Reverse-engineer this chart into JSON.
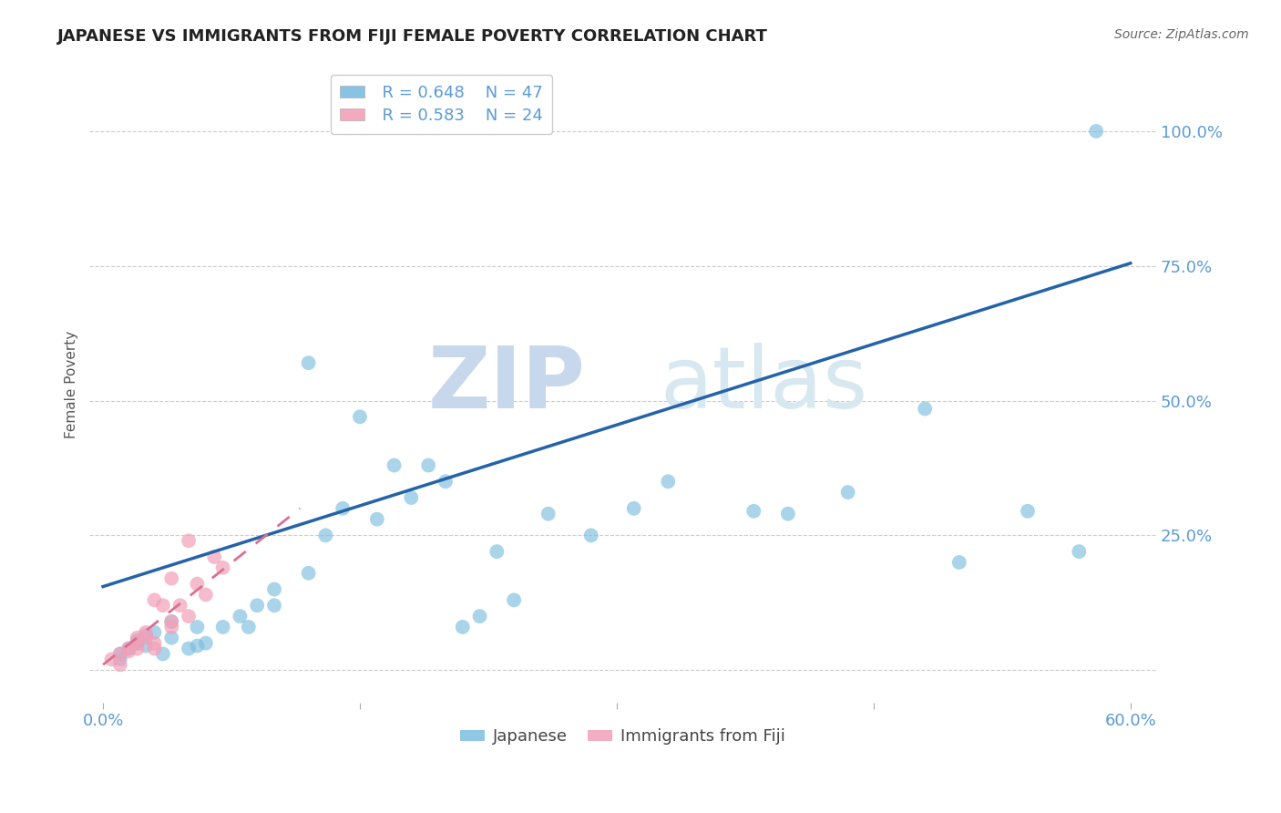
{
  "title": "JAPANESE VS IMMIGRANTS FROM FIJI FEMALE POVERTY CORRELATION CHART",
  "source": "Source: ZipAtlas.com",
  "ylabel": "Female Poverty",
  "ytick_vals": [
    0.0,
    0.25,
    0.5,
    0.75,
    1.0
  ],
  "ytick_labels_right": [
    "",
    "25.0%",
    "50.0%",
    "75.0%",
    "100.0%"
  ],
  "xlim": [
    -0.008,
    0.615
  ],
  "ylim": [
    -0.06,
    1.12
  ],
  "xtick_vals": [
    0.0,
    0.15,
    0.3,
    0.45,
    0.6
  ],
  "xtick_labels": [
    "0.0%",
    "",
    "",
    "",
    "60.0%"
  ],
  "legend_r1": "R = 0.648",
  "legend_n1": "N = 47",
  "legend_r2": "R = 0.583",
  "legend_n2": "N = 24",
  "legend_label1": "Japanese",
  "legend_label2": "Immigrants from Fiji",
  "blue_scatter_color": "#7BBDE0",
  "pink_scatter_color": "#F2A0B8",
  "blue_line_color": "#2563A8",
  "pink_line_color": "#D97090",
  "watermark_zip": "ZIP",
  "watermark_atlas": "atlas",
  "blue_line_x0": 0.0,
  "blue_line_y0": 0.155,
  "blue_line_x1": 0.6,
  "blue_line_y1": 0.755,
  "pink_line_x0": 0.0,
  "pink_line_y0": 0.01,
  "pink_line_x1": 0.115,
  "pink_line_y1": 0.3,
  "japanese_x": [
    0.58,
    0.02,
    0.055,
    0.04,
    0.025,
    0.01,
    0.01,
    0.015,
    0.03,
    0.02,
    0.04,
    0.025,
    0.035,
    0.05,
    0.06,
    0.07,
    0.055,
    0.08,
    0.09,
    0.085,
    0.1,
    0.1,
    0.12,
    0.13,
    0.14,
    0.16,
    0.18,
    0.2,
    0.21,
    0.22,
    0.24,
    0.26,
    0.285,
    0.31,
    0.33,
    0.38,
    0.4,
    0.435,
    0.48,
    0.5,
    0.54,
    0.57,
    0.12,
    0.15,
    0.17,
    0.19,
    0.23
  ],
  "japanese_y": [
    1.0,
    0.055,
    0.08,
    0.06,
    0.045,
    0.03,
    0.02,
    0.04,
    0.07,
    0.05,
    0.09,
    0.065,
    0.03,
    0.04,
    0.05,
    0.08,
    0.045,
    0.1,
    0.12,
    0.08,
    0.15,
    0.12,
    0.18,
    0.25,
    0.3,
    0.28,
    0.32,
    0.35,
    0.08,
    0.1,
    0.13,
    0.29,
    0.25,
    0.3,
    0.35,
    0.295,
    0.29,
    0.33,
    0.485,
    0.2,
    0.295,
    0.22,
    0.57,
    0.47,
    0.38,
    0.38,
    0.22
  ],
  "fiji_x": [
    0.005,
    0.01,
    0.015,
    0.01,
    0.02,
    0.025,
    0.02,
    0.015,
    0.02,
    0.03,
    0.025,
    0.04,
    0.03,
    0.035,
    0.04,
    0.045,
    0.05,
    0.06,
    0.07,
    0.055,
    0.065,
    0.05,
    0.04,
    0.03
  ],
  "fiji_y": [
    0.02,
    0.03,
    0.04,
    0.01,
    0.05,
    0.07,
    0.04,
    0.035,
    0.06,
    0.04,
    0.06,
    0.08,
    0.05,
    0.12,
    0.09,
    0.12,
    0.1,
    0.14,
    0.19,
    0.16,
    0.21,
    0.24,
    0.17,
    0.13
  ]
}
